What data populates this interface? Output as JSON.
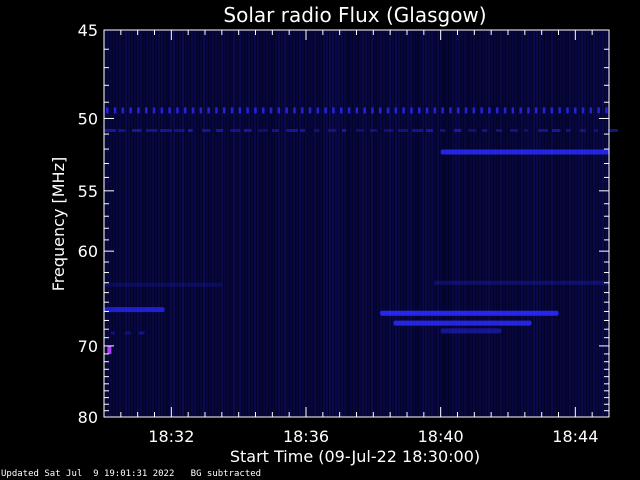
{
  "chart_data": {
    "type": "heatmap",
    "title": "Solar radio Flux (Glasgow)",
    "xlabel": "Start Time (09-Jul-22 18:30:00)",
    "ylabel": "Frequency [MHz]",
    "x_range_minutes_after_start": [
      0,
      15
    ],
    "ylim": [
      45,
      80
    ],
    "y_scale": "reciprocal",
    "x_ticks": [
      {
        "label": "18:32",
        "minutes": 2
      },
      {
        "label": "18:36",
        "minutes": 6
      },
      {
        "label": "18:40",
        "minutes": 10
      },
      {
        "label": "18:44",
        "minutes": 14
      }
    ],
    "y_ticks": [
      45,
      50,
      55,
      60,
      70,
      80
    ],
    "background_color": "#04042a",
    "signal_color": "#2a2aff",
    "features": [
      {
        "t_start": 0.0,
        "t_end": 15.0,
        "freq": 49.5,
        "kind": "dotted-line",
        "intensity": 0.8
      },
      {
        "t_start": 0.0,
        "t_end": 15.0,
        "freq": 50.8,
        "kind": "dashed-line",
        "intensity": 0.55
      },
      {
        "t_start": 10.0,
        "t_end": 15.0,
        "freq": 52.2,
        "kind": "band",
        "intensity": 0.85
      },
      {
        "t_start": 8.2,
        "t_end": 13.5,
        "freq": 66.2,
        "kind": "band",
        "intensity": 0.9
      },
      {
        "t_start": 8.6,
        "t_end": 12.7,
        "freq": 67.3,
        "kind": "band",
        "intensity": 0.85
      },
      {
        "t_start": 10.0,
        "t_end": 11.8,
        "freq": 68.2,
        "kind": "band",
        "intensity": 0.45
      },
      {
        "t_start": 0.0,
        "t_end": 1.8,
        "freq": 65.8,
        "kind": "band",
        "intensity": 0.75
      },
      {
        "t_start": 0.2,
        "t_end": 1.2,
        "freq": 68.5,
        "kind": "dashed-line",
        "intensity": 0.45
      },
      {
        "t_start": 9.8,
        "t_end": 15.0,
        "freq": 63.0,
        "kind": "faint-band",
        "intensity": 0.25
      },
      {
        "t_start": 0.0,
        "t_end": 3.5,
        "freq": 63.2,
        "kind": "faint-band",
        "intensity": 0.2
      },
      {
        "t_start": 0.1,
        "t_end": 0.2,
        "freq": 70.5,
        "kind": "spot",
        "intensity": 1.0
      }
    ]
  },
  "footer": {
    "updated": "Updated Sat Jul  9 19:01:31 2022",
    "note": "BG subtracted"
  }
}
